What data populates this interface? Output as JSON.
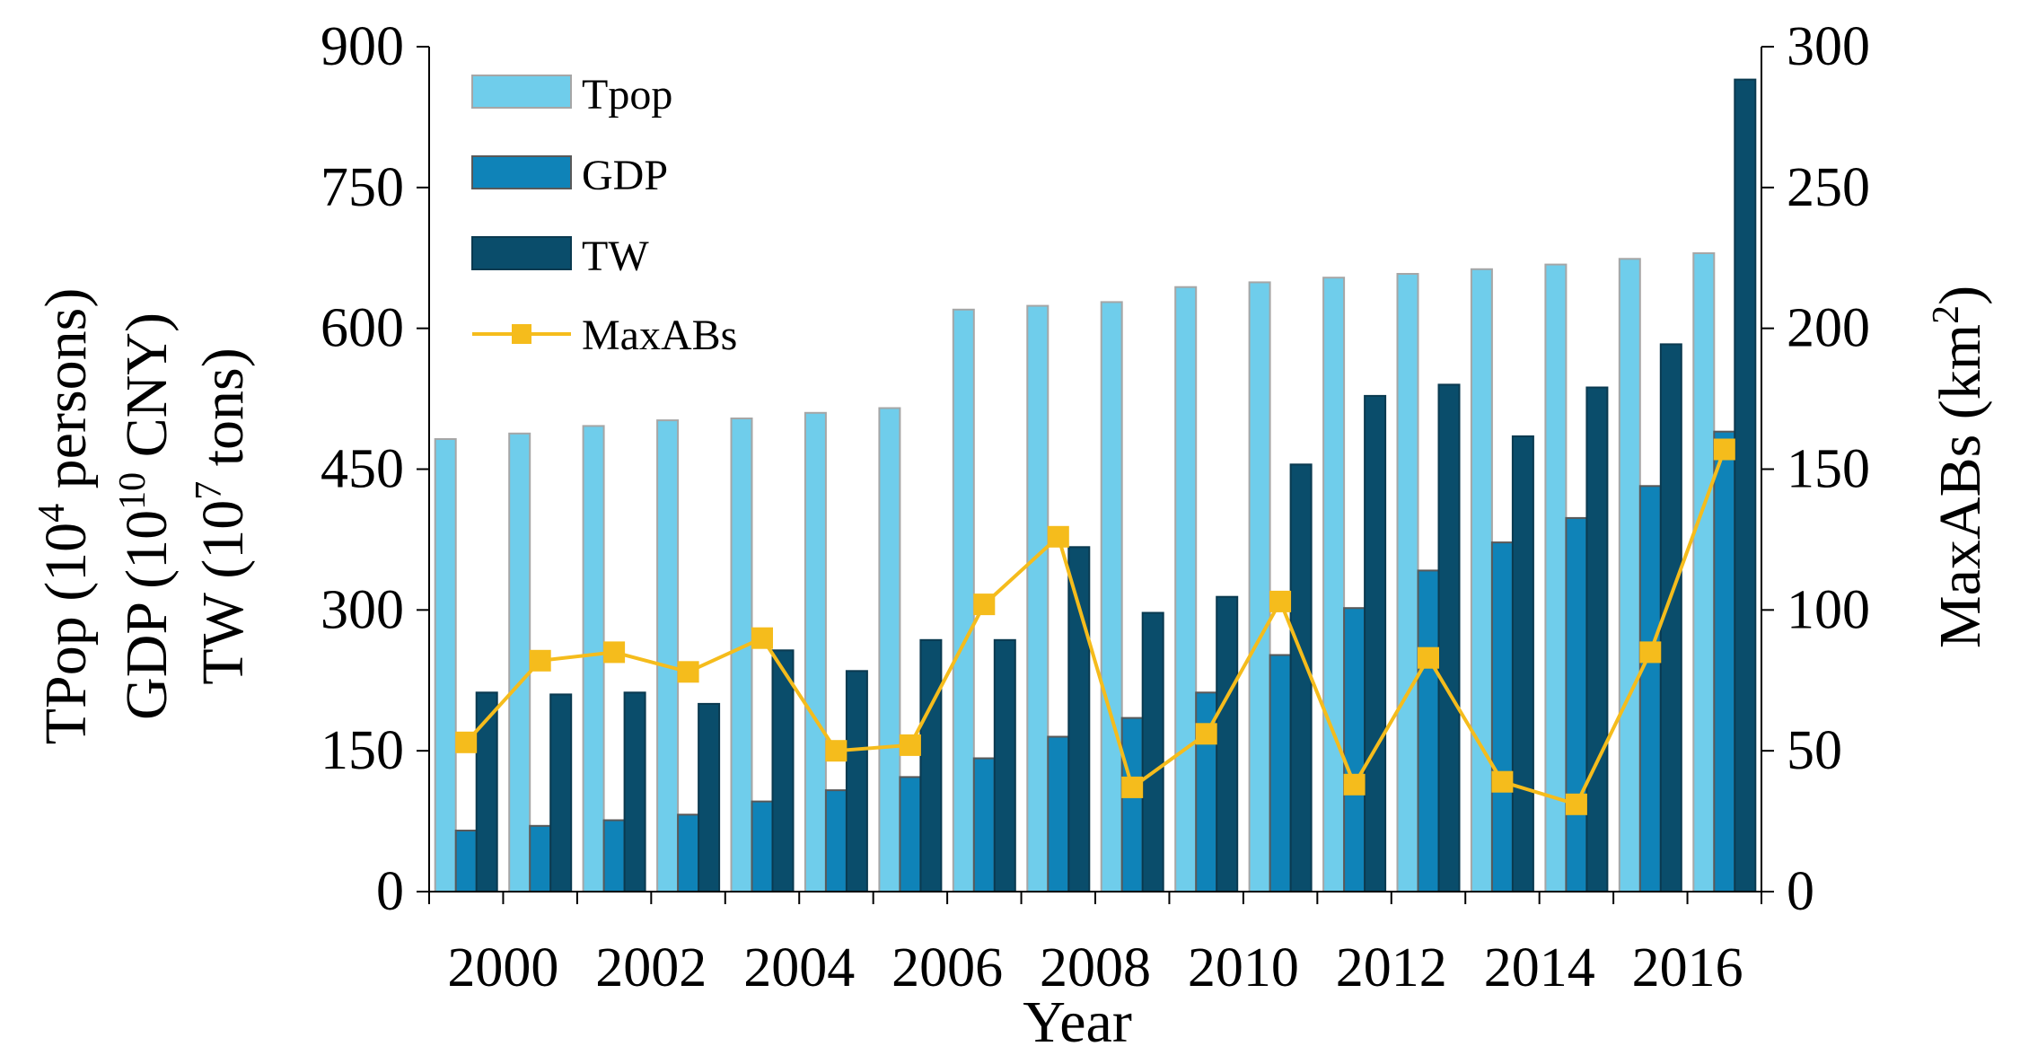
{
  "chart_data": {
    "type": "bar+line",
    "x": [
      2000,
      2001,
      2002,
      2003,
      2004,
      2005,
      2006,
      2007,
      2008,
      2009,
      2010,
      2011,
      2012,
      2013,
      2014,
      2015,
      2016,
      2017
    ],
    "x_tick_labels": [
      "2000",
      "2002",
      "2004",
      "2006",
      "2008",
      "2010",
      "2012",
      "2014",
      "2016"
    ],
    "xlabel": "Year",
    "y_left": {
      "ylim": [
        0,
        900
      ],
      "ticks": [
        "0",
        "150",
        "300",
        "450",
        "600",
        "750",
        "900"
      ],
      "label_lines": [
        {
          "base": "TPop (10",
          "sup": "4",
          "rest": " persons)"
        },
        {
          "base": "GDP (10",
          "sup": "10",
          "rest": " CNY)"
        },
        {
          "base": "TW (10",
          "sup": "7",
          "rest": " tons)"
        }
      ]
    },
    "y_right": {
      "ylim": [
        0,
        300
      ],
      "ticks": [
        "0",
        "50",
        "100",
        "150",
        "200",
        "250",
        "300"
      ],
      "label": {
        "base": "MaxABs (km",
        "sup": "2",
        "rest": ")"
      }
    },
    "series": [
      {
        "name": "Tpop",
        "kind": "bar",
        "axis": "left",
        "color": "#6fcdeb",
        "edge": "#a6a6a6",
        "values": [
          482,
          488,
          496,
          502,
          504,
          510,
          515,
          620,
          624,
          628,
          644,
          649,
          654,
          658,
          663,
          668,
          674,
          680
        ]
      },
      {
        "name": "GDP",
        "kind": "bar",
        "axis": "left",
        "color": "#0f83b8",
        "edge": "#595959",
        "values": [
          65,
          70,
          76,
          82,
          96,
          108,
          122,
          142,
          165,
          185,
          212,
          252,
          302,
          342,
          372,
          398,
          432,
          490
        ]
      },
      {
        "name": "TW",
        "kind": "bar",
        "axis": "left",
        "color": "#0a4d6b",
        "edge": "#0a3a50",
        "values": [
          212,
          210,
          212,
          200,
          257,
          235,
          268,
          268,
          367,
          297,
          314,
          455,
          528,
          540,
          485,
          537,
          583,
          865
        ]
      },
      {
        "name": "MaxABs",
        "kind": "line",
        "axis": "right",
        "color": "#f5bc1c",
        "values": [
          53,
          82,
          85,
          78,
          90,
          50,
          52,
          102,
          126,
          37,
          56,
          103,
          38,
          83,
          39,
          31,
          85,
          157
        ]
      }
    ],
    "legend": "top-left inside"
  }
}
